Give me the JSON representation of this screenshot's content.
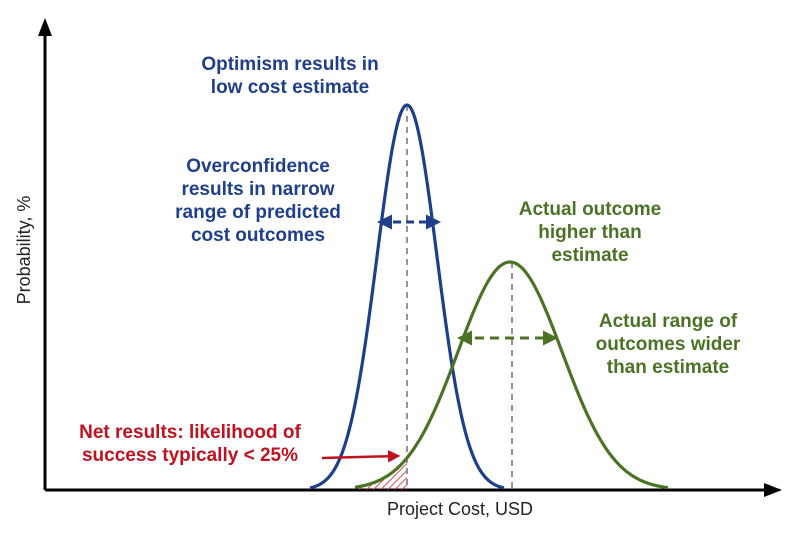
{
  "axes": {
    "y_label": "Probability, %",
    "x_label": "Project Cost, USD"
  },
  "annotations": {
    "optimism": [
      "Optimism results in",
      "low cost estimate"
    ],
    "overconfidence": [
      "Overconfidence",
      "results in narrow",
      "range of predicted",
      "cost outcomes"
    ],
    "actual_outcome": [
      "Actual outcome",
      "higher than",
      "estimate"
    ],
    "actual_range": [
      "Actual range of",
      "outcomes wider",
      "than estimate"
    ],
    "net_results": [
      "Net results: likelihood of",
      "success typically < 25%"
    ]
  }
}
